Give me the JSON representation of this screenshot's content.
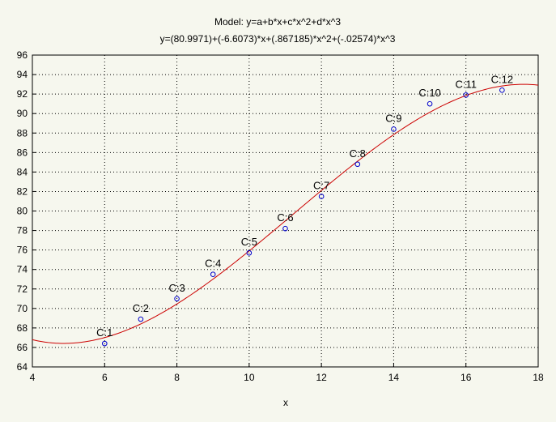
{
  "chart_data": {
    "type": "scatter",
    "title": "Model: y=a+b*x+c*x^2+d*x^3",
    "subtitle": "y=(80.9971)+(-6.6073)*x+(.867185)*x^2+(-.02574)*x^3",
    "xlabel": "x",
    "ylabel": "",
    "xlim": [
      4,
      18
    ],
    "ylim": [
      64,
      96
    ],
    "xticks": [
      4,
      6,
      8,
      10,
      12,
      14,
      16,
      18
    ],
    "yticks": [
      64,
      66,
      68,
      70,
      72,
      74,
      76,
      78,
      80,
      82,
      84,
      86,
      88,
      90,
      92,
      94,
      96
    ],
    "grid": true,
    "points": [
      {
        "label": "C:1",
        "x": 6,
        "y": 66.4
      },
      {
        "label": "C:2",
        "x": 7,
        "y": 68.9
      },
      {
        "label": "C:3",
        "x": 8,
        "y": 71.0
      },
      {
        "label": "C:4",
        "x": 9,
        "y": 73.5
      },
      {
        "label": "C:5",
        "x": 10,
        "y": 75.7
      },
      {
        "label": "C:6",
        "x": 11,
        "y": 78.2
      },
      {
        "label": "C:7",
        "x": 12,
        "y": 81.5
      },
      {
        "label": "C:8",
        "x": 13,
        "y": 84.8
      },
      {
        "label": "C:9",
        "x": 14,
        "y": 88.4
      },
      {
        "label": "C:10",
        "x": 15,
        "y": 91.0
      },
      {
        "label": "C:11",
        "x": 16,
        "y": 91.9
      },
      {
        "label": "C:12",
        "x": 17,
        "y": 92.4
      }
    ],
    "fit": {
      "a": 80.9971,
      "b": -6.6073,
      "c": 0.867185,
      "d": -0.02574
    },
    "colors": {
      "points": "#0000cc",
      "fit": "#cc0000",
      "grid": "#000000",
      "background": "#f6f7ee"
    }
  }
}
